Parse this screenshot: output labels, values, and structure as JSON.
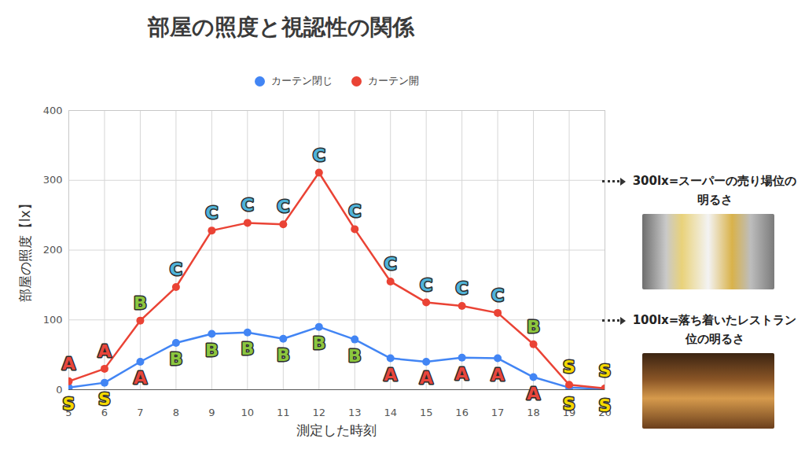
{
  "chart_data": {
    "type": "line",
    "title": "部屋の照度と視認性の関係",
    "x_label": "測定した時刻",
    "y_label": "部屋の照度【lx】",
    "x": [
      5,
      6,
      7,
      8,
      9,
      10,
      11,
      12,
      13,
      14,
      15,
      16,
      17,
      18,
      19,
      20
    ],
    "series": [
      {
        "name": "カーテン閉じ",
        "color": "#4285f4",
        "values": [
          3,
          10,
          40,
          67,
          80,
          82,
          73,
          90,
          72,
          45,
          40,
          46,
          45,
          18,
          3,
          1
        ],
        "point_labels": [
          "S",
          "S",
          "A",
          "B",
          "B",
          "B",
          "B",
          "B",
          "B",
          "A",
          "A",
          "A",
          "A",
          "A",
          "S",
          "S"
        ]
      },
      {
        "name": "カーテン開",
        "color": "#ea4335",
        "values": [
          12,
          30,
          99,
          147,
          228,
          239,
          237,
          311,
          230,
          155,
          125,
          120,
          110,
          65,
          7,
          2
        ],
        "point_labels": [
          "A",
          "A",
          "B",
          "C",
          "C",
          "C",
          "C",
          "C",
          "C",
          "C",
          "C",
          "C",
          "C",
          "B",
          "S",
          "S"
        ]
      }
    ],
    "xlim": [
      5,
      20
    ],
    "xticks": [
      5,
      6,
      7,
      8,
      9,
      10,
      11,
      12,
      13,
      14,
      15,
      16,
      17,
      18,
      19,
      20
    ],
    "ylim": [
      0,
      400
    ],
    "yticks": [
      0,
      100,
      200,
      300,
      400
    ],
    "grid": true,
    "legend": "top",
    "marker": "circle",
    "annotations": [
      {
        "text": "300lx=スーパーの売り場位の明るさ",
        "y": 300
      },
      {
        "text": "100lx=落ち着いたレストラン位の明るさ",
        "y": 100
      }
    ]
  }
}
